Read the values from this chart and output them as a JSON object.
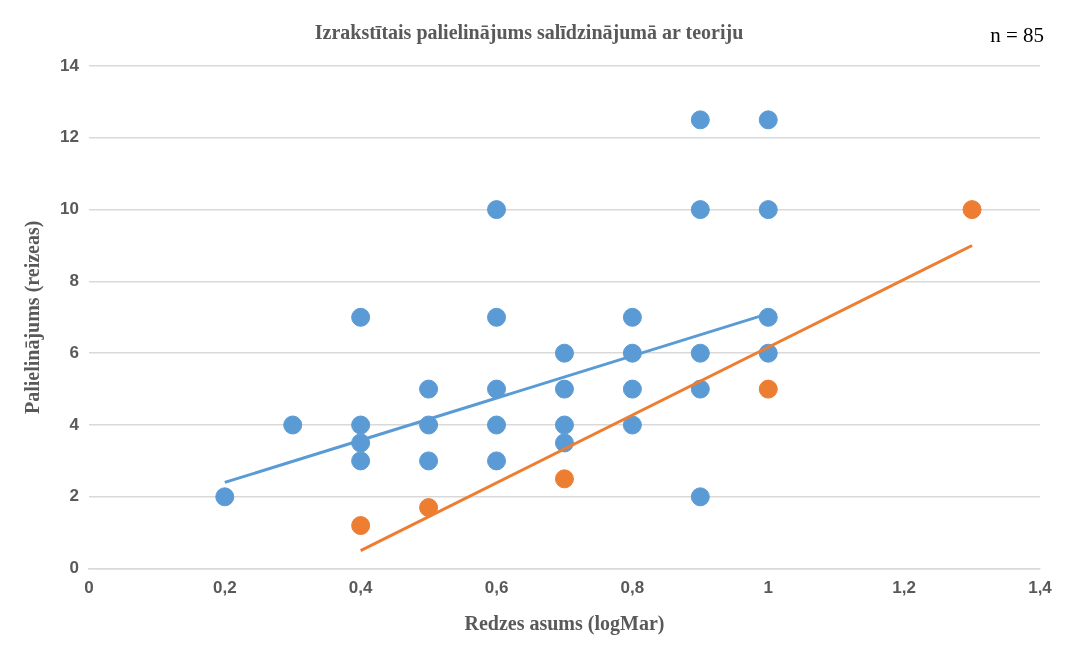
{
  "chart_data": {
    "type": "scatter",
    "title": "Izrakstītais palielinājums salīdzinājumā ar teoriju",
    "xlabel": "Redzes asums (logMar)",
    "ylabel": "Palielinājums (reizeas)",
    "annotations": [
      "n = 85"
    ],
    "xlim": [
      0,
      1.4
    ],
    "xticks": [
      0,
      {
        "value": 0.2,
        "label": "0,2"
      },
      {
        "value": 0.4,
        "label": "0,4"
      },
      {
        "value": 0.6,
        "label": "0,6"
      },
      {
        "value": 0.8,
        "label": "0,8"
      },
      1,
      {
        "value": 1.2,
        "label": "1,2"
      },
      {
        "value": 1.4,
        "label": "1,4"
      }
    ],
    "ylim": [
      0,
      14
    ],
    "yticks": [
      0,
      2,
      4,
      6,
      8,
      10,
      12,
      14
    ],
    "grid": "y",
    "legend": false,
    "marker": "circle",
    "series": [
      {
        "color": "#5b9bd5",
        "x": [
          0.2,
          0.3,
          0.4,
          0.4,
          0.4,
          0.4,
          0.5,
          0.5,
          0.5,
          0.6,
          0.6,
          0.6,
          0.6,
          0.6,
          0.7,
          0.7,
          0.7,
          0.7,
          0.8,
          0.8,
          0.8,
          0.8,
          0.9,
          0.9,
          0.9,
          0.9,
          0.9,
          1,
          1,
          1,
          1
        ],
        "values": [
          2,
          4,
          7,
          4,
          3.5,
          3,
          5,
          4,
          3,
          10,
          7,
          5,
          4,
          3,
          6,
          5,
          4,
          3.5,
          7,
          6,
          5,
          4,
          12.5,
          10,
          6,
          5,
          2,
          12.5,
          10,
          7,
          6
        ]
      },
      {
        "color": "#ed7d31",
        "x": [
          0.4,
          0.5,
          0.7,
          1,
          1.3
        ],
        "values": [
          1.2,
          1.7,
          2.5,
          5,
          10
        ]
      },
      {
        "type": "line",
        "color": "#5b9bd5",
        "marker": "none",
        "x": [
          0.2,
          1
        ],
        "values": [
          2.4,
          7.1
        ]
      },
      {
        "type": "line",
        "color": "#ed7d31",
        "marker": "none",
        "x": [
          0.4,
          1.3
        ],
        "values": [
          0.5,
          9
        ]
      }
    ]
  }
}
